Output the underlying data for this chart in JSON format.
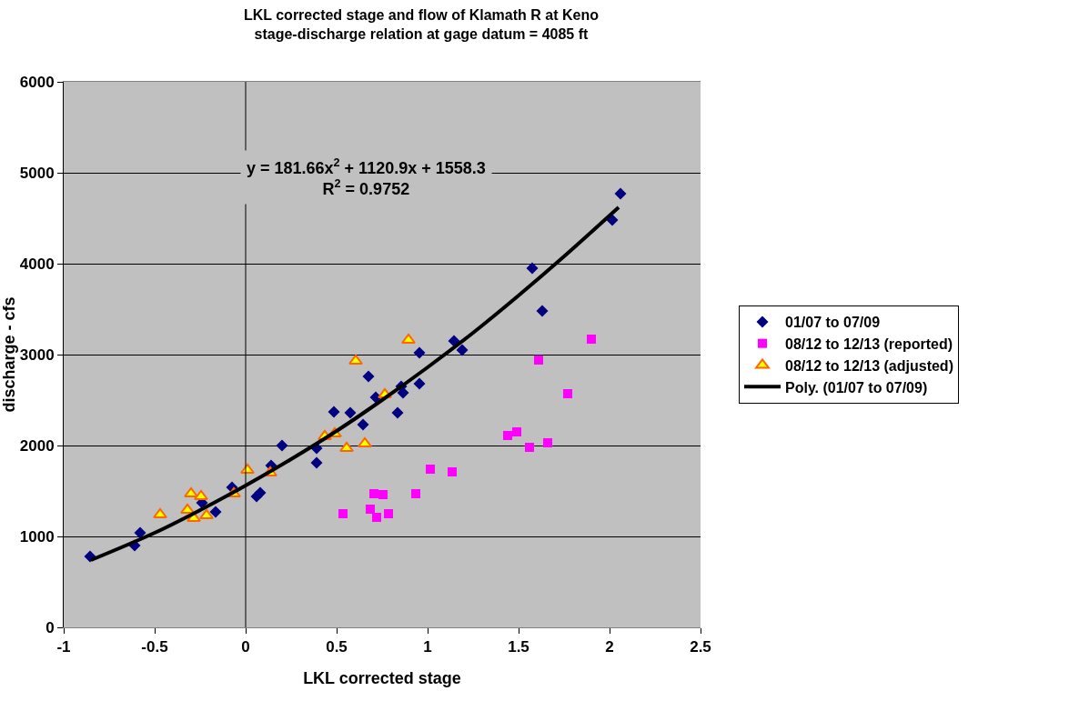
{
  "chart_data": {
    "type": "scatter",
    "title": "LKL corrected stage and flow of Klamath R at Keno\nstage-discharge relation at gage datum = 4085 ft",
    "xlabel": "LKL corrected stage",
    "ylabel": "discharge - cfs",
    "xlim": [
      -1,
      2.5
    ],
    "xticks": [
      -1,
      -0.5,
      0,
      0.5,
      1,
      1.5,
      2,
      2.5
    ],
    "ylim": [
      0,
      6000
    ],
    "yticks": [
      0,
      1000,
      2000,
      3000,
      4000,
      5000,
      6000
    ],
    "grid": "y",
    "legend": "right",
    "annotations": [
      "y = 181.66x$^{2}$ + 1120.9x + 1558.3\nR$^{2}$ = 0.9752"
    ],
    "ref_lines": [
      {
        "axis": "x",
        "value": 0,
        "color": "#000000"
      }
    ],
    "series": [
      {
        "name": "01/07 to 07/09",
        "marker": "diamond",
        "color": "#000080",
        "x": [
          -0.855,
          -0.61,
          -0.58,
          -0.24,
          -0.165,
          -0.075,
          0.06,
          0.08,
          0.14,
          0.2,
          0.39,
          0.39,
          0.485,
          0.575,
          0.645,
          0.675,
          0.715,
          0.835,
          0.855,
          0.865,
          0.955,
          0.955,
          1.145,
          1.19,
          1.575,
          1.63,
          2.015,
          2.06
        ],
        "values": [
          780,
          900,
          1040,
          1370,
          1270,
          1540,
          1440,
          1480,
          1780,
          2000,
          1970,
          1810,
          2370,
          2360,
          2230,
          2760,
          2530,
          2360,
          2650,
          2580,
          3020,
          2680,
          3150,
          3050,
          3950,
          3480,
          4480,
          4770
        ]
      },
      {
        "name": "08/12 to 12/13 (reported)",
        "marker": "square",
        "color": "#ff00ff",
        "x": [
          0.535,
          0.685,
          0.705,
          0.72,
          0.755,
          0.785,
          0.935,
          1.015,
          1.135,
          1.44,
          1.49,
          1.56,
          1.61,
          1.66,
          1.77,
          1.9
        ],
        "values": [
          1250,
          1300,
          1470,
          1210,
          1460,
          1250,
          1470,
          1740,
          1710,
          2110,
          2150,
          1980,
          2940,
          2030,
          2570,
          3170
        ]
      },
      {
        "name": "08/12 to 12/13 (adjusted)",
        "marker": "triangle",
        "color": "#ffff00",
        "x": [
          -0.47,
          -0.32,
          -0.3,
          -0.285,
          -0.245,
          -0.215,
          -0.065,
          0.01,
          0.135,
          0.435,
          0.49,
          0.555,
          0.605,
          0.655,
          0.765,
          0.895
        ],
        "values": [
          1240,
          1290,
          1470,
          1200,
          1440,
          1230,
          1470,
          1730,
          1700,
          2100,
          2130,
          1970,
          2930,
          2020,
          2560,
          3160
        ]
      },
      {
        "name": "Poly. (01/07 to 07/09)",
        "type": "line",
        "marker": "none",
        "color": "#000000",
        "x": [
          -0.85,
          -0.5,
          -0.25,
          0,
          0.25,
          0.5,
          0.75,
          1,
          1.25,
          1.5,
          1.75,
          2.05
        ],
        "values": [
          740,
          1040,
          1290,
          1560,
          1850,
          2160,
          2500,
          2860,
          3240,
          3650,
          4080,
          4620
        ]
      }
    ]
  }
}
